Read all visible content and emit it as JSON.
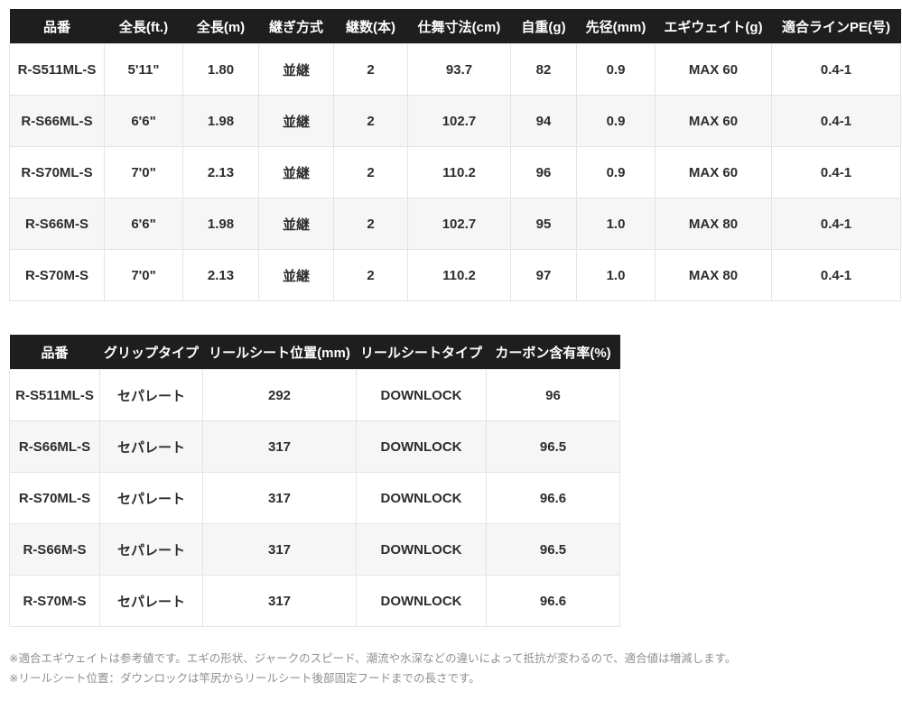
{
  "tables": [
    {
      "title": "rod-spec-table",
      "headers": [
        "品番",
        "全長(ft.)",
        "全長(m)",
        "継ぎ方式",
        "継数(本)",
        "仕舞寸法(cm)",
        "自重(g)",
        "先径(mm)",
        "エギウェイト(g)",
        "適合ラインPE(号)"
      ],
      "rows": [
        [
          "R-S511ML-S",
          "5'11\"",
          "1.80",
          "並継",
          "2",
          "93.7",
          "82",
          "0.9",
          "MAX 60",
          "0.4-1"
        ],
        [
          "R-S66ML-S",
          "6'6\"",
          "1.98",
          "並継",
          "2",
          "102.7",
          "94",
          "0.9",
          "MAX 60",
          "0.4-1"
        ],
        [
          "R-S70ML-S",
          "7'0\"",
          "2.13",
          "並継",
          "2",
          "110.2",
          "96",
          "0.9",
          "MAX 60",
          "0.4-1"
        ],
        [
          "R-S66M-S",
          "6'6\"",
          "1.98",
          "並継",
          "2",
          "102.7",
          "95",
          "1.0",
          "MAX 80",
          "0.4-1"
        ],
        [
          "R-S70M-S",
          "7'0\"",
          "2.13",
          "並継",
          "2",
          "110.2",
          "97",
          "1.0",
          "MAX 80",
          "0.4-1"
        ]
      ]
    },
    {
      "title": "grip-spec-table",
      "headers": [
        "品番",
        "グリップタイプ",
        "リールシート位置(mm)",
        "リールシートタイプ",
        "カーボン含有率(%)"
      ],
      "rows": [
        [
          "R-S511ML-S",
          "セパレート",
          "292",
          "DOWNLOCK",
          "96"
        ],
        [
          "R-S66ML-S",
          "セパレート",
          "317",
          "DOWNLOCK",
          "96.5"
        ],
        [
          "R-S70ML-S",
          "セパレート",
          "317",
          "DOWNLOCK",
          "96.6"
        ],
        [
          "R-S66M-S",
          "セパレート",
          "317",
          "DOWNLOCK",
          "96.5"
        ],
        [
          "R-S70M-S",
          "セパレート",
          "317",
          "DOWNLOCK",
          "96.6"
        ]
      ]
    }
  ],
  "notes": [
    "※適合エギウェイトは参考値です。エギの形状、ジャークのスピード、潮流や水深などの違いによって抵抗が変わるので、適合値は増減します。",
    "※リールシート位置：ダウンロックは竿尻からリールシート後部固定フードまでの長さです。"
  ],
  "colors": {
    "header_bg": "#1e1e1e",
    "header_text": "#ffffff",
    "row_alt_bg": "#f6f6f6",
    "cell_text": "#2d2d2d",
    "border": "#e4e4e4",
    "note_text": "#8f8f8f"
  }
}
